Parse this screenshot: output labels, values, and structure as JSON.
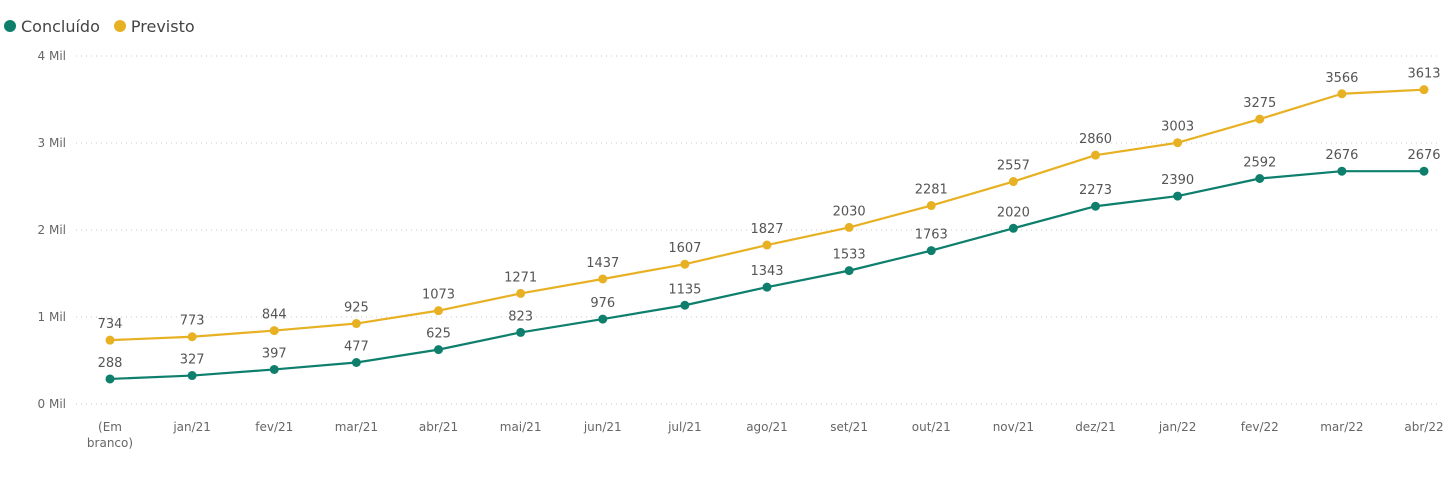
{
  "legend": {
    "items": [
      {
        "label": "Concluído",
        "color": "#0e7f6c"
      },
      {
        "label": "Previsto",
        "color": "#e8b124"
      }
    ]
  },
  "chart_data": {
    "type": "line",
    "categories": [
      "(Em branco)",
      "jan/21",
      "fev/21",
      "mar/21",
      "abr/21",
      "mai/21",
      "jun/21",
      "jul/21",
      "ago/21",
      "set/21",
      "out/21",
      "nov/21",
      "dez/21",
      "jan/22",
      "fev/22",
      "mar/22",
      "abr/22"
    ],
    "series": [
      {
        "name": "Concluído",
        "color": "#0e7f6c",
        "values": [
          288,
          327,
          397,
          477,
          625,
          823,
          976,
          1135,
          1343,
          1533,
          1763,
          2020,
          2273,
          2390,
          2592,
          2676,
          2676
        ]
      },
      {
        "name": "Previsto",
        "color": "#e8b124",
        "values": [
          734,
          773,
          844,
          925,
          1073,
          1271,
          1437,
          1607,
          1827,
          2030,
          2281,
          2557,
          2860,
          3003,
          3275,
          3566,
          3613
        ]
      }
    ],
    "ylim": [
      0,
      4000
    ],
    "yticks": [
      0,
      1000,
      2000,
      3000,
      4000
    ],
    "ytick_labels": [
      "0 Mil",
      "1 Mil",
      "2 Mil",
      "3 Mil",
      "4 Mil"
    ],
    "grid": true,
    "legend_position": "top-left",
    "data_labels": true
  }
}
